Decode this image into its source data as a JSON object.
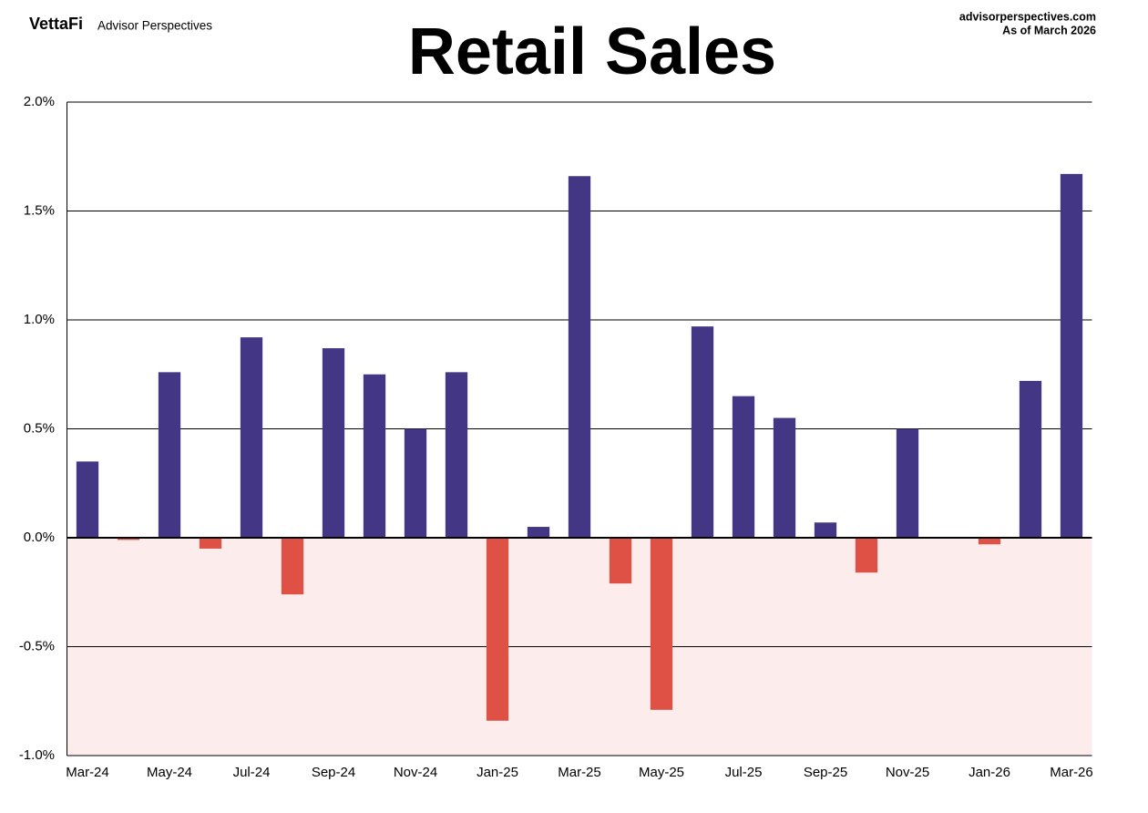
{
  "brand": "VettaFi",
  "brand_sub": "Advisor Perspectives",
  "source": "advisorperspectives.com",
  "as_of": "As of March 2026",
  "chart_data": {
    "type": "bar",
    "title": "Retail Sales",
    "categories": [
      "Mar-24",
      null,
      "May-24",
      null,
      "Jul-24",
      null,
      "Sep-24",
      null,
      "Nov-24",
      null,
      "Jan-25",
      null,
      "Mar-25",
      null,
      "May-25",
      null,
      "Jul-25",
      null,
      "Sep-25",
      null,
      "Nov-25",
      null,
      "Jan-26",
      null,
      "Mar-26"
    ],
    "values": [
      0.35,
      -0.01,
      0.76,
      -0.05,
      0.92,
      -0.26,
      0.87,
      0.75,
      0.5,
      0.76,
      -0.84,
      0.05,
      1.66,
      -0.21,
      -0.79,
      0.97,
      0.65,
      0.55,
      0.07,
      -0.16,
      0.5,
      0,
      -0.03,
      0.72,
      1.67
    ],
    "color": "#433685",
    "negative_color": "#e05145",
    "negative_region_color": "#fcecec",
    "ylim": [
      -1.0,
      2.0
    ],
    "yticks": [
      {
        "value": -1.0,
        "label": "-1.0%"
      },
      {
        "value": -0.5,
        "label": "-0.5%"
      },
      {
        "value": 0,
        "label": "0.0%"
      },
      {
        "value": 0.5,
        "label": "0.5%"
      },
      {
        "value": 1.0,
        "label": "1.0%"
      },
      {
        "value": 1.5,
        "label": "1.5%"
      },
      {
        "value": 2.0,
        "label": "2.0%"
      }
    ],
    "grid": true
  }
}
